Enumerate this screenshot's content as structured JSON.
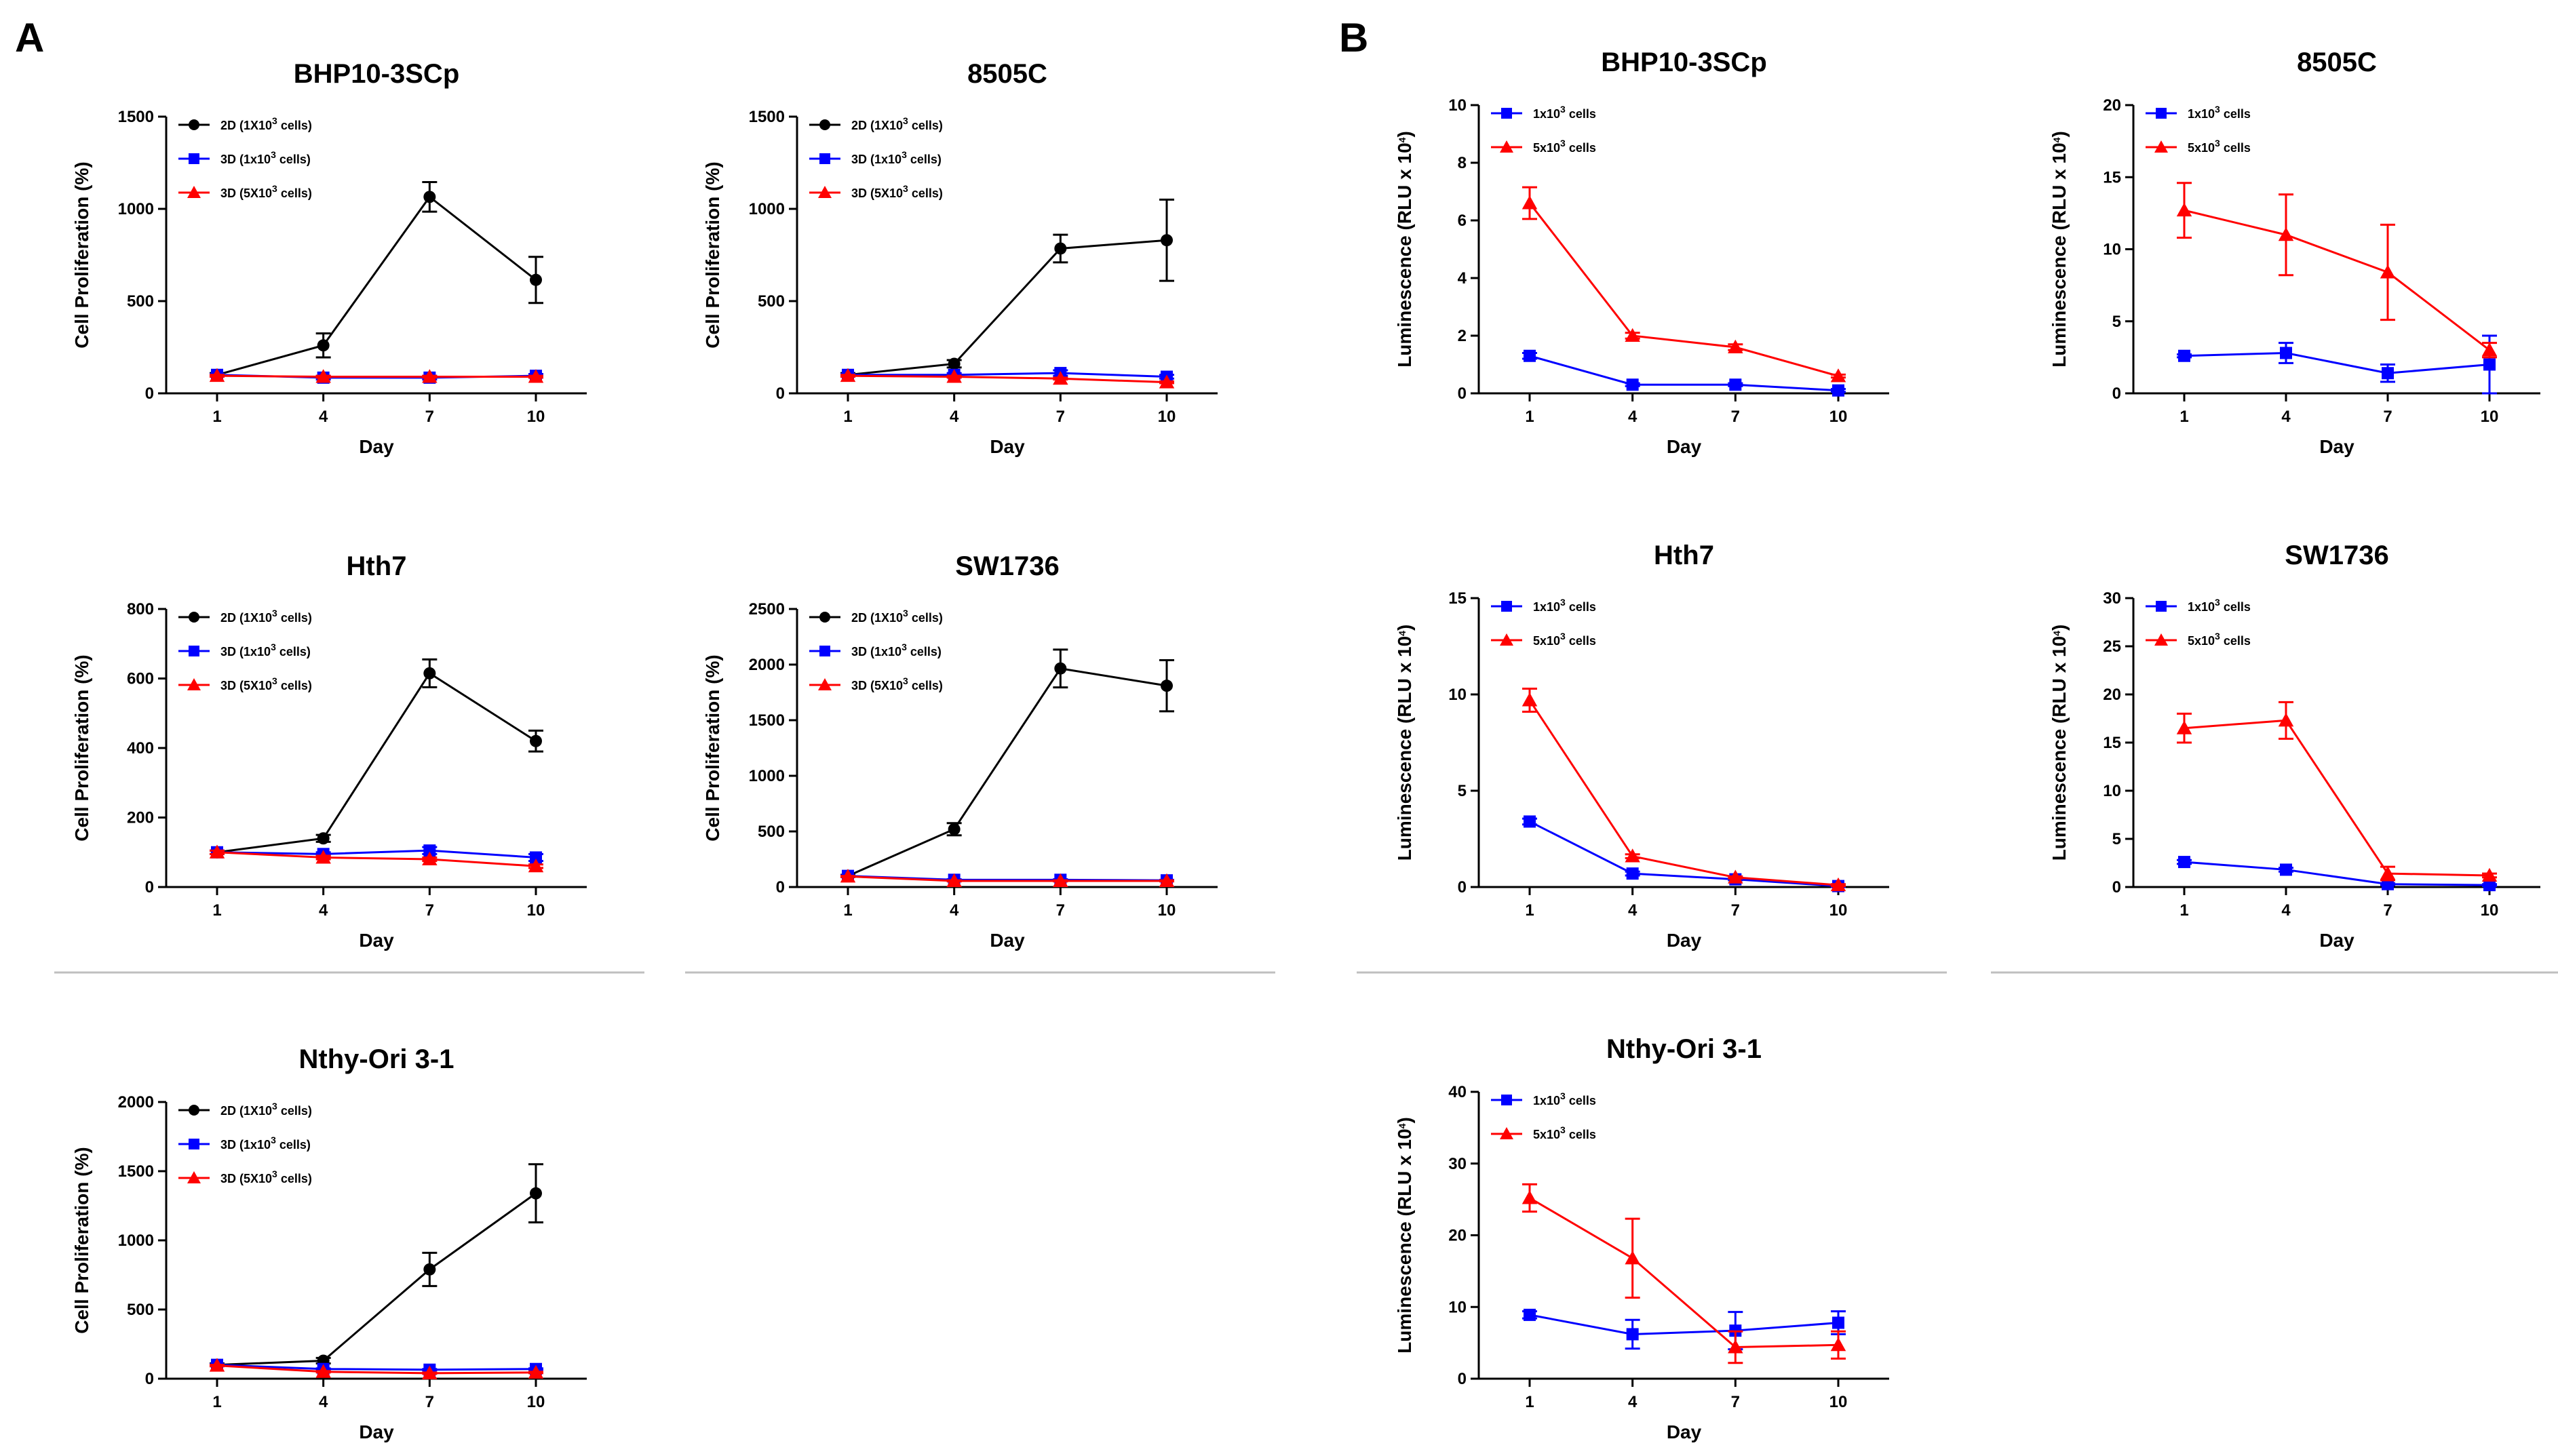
{
  "panels": [
    {
      "letter": "A"
    },
    {
      "letter": "B"
    }
  ],
  "colors": {
    "black": "#000000",
    "blue": "#0000ff",
    "red": "#ff0000",
    "divider": "#bfbfbf"
  },
  "chart_data": [
    {
      "type": "line",
      "panel": "A",
      "title": "BHP10-3SCp",
      "xlabel": "Day",
      "ylabel": "Cell Proliferation (%)",
      "x": [
        1,
        4,
        7,
        10
      ],
      "xticks": [
        "1",
        "4",
        "7",
        "10"
      ],
      "ylim": [
        0,
        1500
      ],
      "yticks": [
        0,
        500,
        1000,
        1500
      ],
      "grid": false,
      "legend": "top-left",
      "series": [
        {
          "name": "2D (1X10",
          "sup": "3",
          "tail": " cells)",
          "color": "#000000",
          "marker": "circle",
          "values": [
            100,
            260,
            1065,
            615
          ],
          "errors": [
            10,
            65,
            80,
            125
          ]
        },
        {
          "name": "3D (1x10",
          "sup": "3",
          "tail": " cells)",
          "color": "#0000ff",
          "marker": "square",
          "values": [
            100,
            85,
            85,
            95
          ],
          "errors": [
            5,
            10,
            10,
            10
          ]
        },
        {
          "name": "3D (5X10",
          "sup": "3",
          "tail": " cells)",
          "color": "#ff0000",
          "marker": "triangle",
          "values": [
            95,
            90,
            90,
            90
          ],
          "errors": [
            5,
            5,
            5,
            5
          ]
        }
      ]
    },
    {
      "type": "line",
      "panel": "A",
      "title": "8505C",
      "xlabel": "Day",
      "ylabel": "Cell Proliferation (%)",
      "x": [
        1,
        4,
        7,
        10
      ],
      "xticks": [
        "1",
        "4",
        "7",
        "10"
      ],
      "ylim": [
        0,
        1500
      ],
      "yticks": [
        0,
        500,
        1000,
        1500
      ],
      "grid": false,
      "legend": "top-left",
      "series": [
        {
          "name": "2D (1X10",
          "sup": "3",
          "tail": " cells)",
          "color": "#000000",
          "marker": "circle",
          "values": [
            100,
            160,
            785,
            830
          ],
          "errors": [
            10,
            20,
            75,
            220
          ]
        },
        {
          "name": "3D (1x10",
          "sup": "3",
          "tail": " cells)",
          "color": "#0000ff",
          "marker": "square",
          "values": [
            100,
            100,
            110,
            90
          ],
          "errors": [
            5,
            10,
            15,
            10
          ]
        },
        {
          "name": "3D (5X10",
          "sup": "3",
          "tail": " cells)",
          "color": "#ff0000",
          "marker": "triangle",
          "values": [
            95,
            90,
            80,
            60
          ],
          "errors": [
            5,
            5,
            5,
            5
          ]
        }
      ]
    },
    {
      "type": "line",
      "panel": "B",
      "title": "BHP10-3SCp",
      "xlabel": "Day",
      "ylabel": "Luminescence (RLU x 10",
      "ylabel_sup": "4",
      "ylabel_tail": ")",
      "x": [
        1,
        4,
        7,
        10
      ],
      "xticks": [
        "1",
        "4",
        "7",
        "10"
      ],
      "ylim": [
        0,
        10
      ],
      "yticks": [
        0,
        2,
        4,
        6,
        8,
        10
      ],
      "grid": false,
      "legend": "top-left",
      "series": [
        {
          "name": "1x10",
          "sup": "3",
          "tail": " cells",
          "color": "#0000ff",
          "marker": "square",
          "values": [
            1.3,
            0.3,
            0.3,
            0.1
          ],
          "errors": [
            0.1,
            0.05,
            0.05,
            0.05
          ]
        },
        {
          "name": "5x10",
          "sup": "3",
          "tail": " cells",
          "color": "#ff0000",
          "marker": "triangle",
          "values": [
            6.6,
            2.0,
            1.6,
            0.6
          ],
          "errors": [
            0.55,
            0.1,
            0.1,
            0.05
          ]
        }
      ]
    },
    {
      "type": "line",
      "panel": "B",
      "title": "8505C",
      "xlabel": "Day",
      "ylabel": "Luminescence (RLU x 10",
      "ylabel_sup": "4",
      "ylabel_tail": ")",
      "x": [
        1,
        4,
        7,
        10
      ],
      "xticks": [
        "1",
        "4",
        "7",
        "10"
      ],
      "ylim": [
        0,
        20
      ],
      "yticks": [
        0,
        5,
        10,
        15,
        20
      ],
      "grid": false,
      "legend": "top-left",
      "series": [
        {
          "name": "1x10",
          "sup": "3",
          "tail": " cells",
          "color": "#0000ff",
          "marker": "square",
          "values": [
            2.6,
            2.8,
            1.4,
            2.0
          ],
          "errors": [
            0.1,
            0.7,
            0.6,
            2.0
          ]
        },
        {
          "name": "5x10",
          "sup": "3",
          "tail": " cells",
          "color": "#ff0000",
          "marker": "triangle",
          "values": [
            12.7,
            11.0,
            8.4,
            3.0
          ],
          "errors": [
            1.9,
            2.8,
            3.3,
            0.5
          ]
        }
      ]
    },
    {
      "type": "line",
      "panel": "A",
      "title": "Hth7",
      "xlabel": "Day",
      "ylabel": "Cell Proliferation (%)",
      "x": [
        1,
        4,
        7,
        10
      ],
      "xticks": [
        "1",
        "4",
        "7",
        "10"
      ],
      "ylim": [
        0,
        800
      ],
      "yticks": [
        0,
        200,
        400,
        600,
        800
      ],
      "grid": false,
      "legend": "top-left",
      "series": [
        {
          "name": "2D (1X10",
          "sup": "3",
          "tail": " cells)",
          "color": "#000000",
          "marker": "circle",
          "values": [
            100,
            140,
            615,
            420
          ],
          "errors": [
            5,
            10,
            40,
            30
          ]
        },
        {
          "name": "3D (1x10",
          "sup": "3",
          "tail": " cells)",
          "color": "#0000ff",
          "marker": "square",
          "values": [
            100,
            95,
            105,
            85
          ],
          "errors": [
            5,
            5,
            10,
            10
          ]
        },
        {
          "name": "3D (5X10",
          "sup": "3",
          "tail": " cells)",
          "color": "#ff0000",
          "marker": "triangle",
          "values": [
            100,
            85,
            80,
            60
          ],
          "errors": [
            5,
            5,
            5,
            5
          ]
        }
      ]
    },
    {
      "type": "line",
      "panel": "A",
      "title": "SW1736",
      "xlabel": "Day",
      "ylabel": "Cell Proliferation (%)",
      "x": [
        1,
        4,
        7,
        10
      ],
      "xticks": [
        "1",
        "4",
        "7",
        "10"
      ],
      "ylim": [
        0,
        2500
      ],
      "yticks": [
        0,
        500,
        1000,
        1500,
        2000,
        2500
      ],
      "grid": false,
      "legend": "top-left",
      "series": [
        {
          "name": "2D (1X10",
          "sup": "3",
          "tail": " cells)",
          "color": "#000000",
          "marker": "circle",
          "values": [
            100,
            520,
            1965,
            1810
          ],
          "errors": [
            10,
            55,
            170,
            230
          ]
        },
        {
          "name": "3D (1x10",
          "sup": "3",
          "tail": " cells)",
          "color": "#0000ff",
          "marker": "square",
          "values": [
            100,
            65,
            65,
            60
          ],
          "errors": [
            5,
            5,
            5,
            5
          ]
        },
        {
          "name": "3D (5X10",
          "sup": "3",
          "tail": " cells)",
          "color": "#ff0000",
          "marker": "triangle",
          "values": [
            95,
            55,
            55,
            55
          ],
          "errors": [
            5,
            5,
            5,
            5
          ]
        }
      ]
    },
    {
      "type": "line",
      "panel": "B",
      "title": "Hth7",
      "xlabel": "Day",
      "ylabel": "Luminescence (RLU x 10",
      "ylabel_sup": "4",
      "ylabel_tail": ")",
      "x": [
        1,
        4,
        7,
        10
      ],
      "xticks": [
        "1",
        "4",
        "7",
        "10"
      ],
      "ylim": [
        0,
        15
      ],
      "yticks": [
        0,
        5,
        10,
        15
      ],
      "grid": false,
      "legend": "top-left",
      "series": [
        {
          "name": "1x10",
          "sup": "3",
          "tail": " cells",
          "color": "#0000ff",
          "marker": "square",
          "values": [
            3.4,
            0.7,
            0.4,
            0.05
          ],
          "errors": [
            0.15,
            0.1,
            0.05,
            0.05
          ]
        },
        {
          "name": "5x10",
          "sup": "3",
          "tail": " cells",
          "color": "#ff0000",
          "marker": "triangle",
          "values": [
            9.7,
            1.6,
            0.5,
            0.1
          ],
          "errors": [
            0.6,
            0.1,
            0.05,
            0.05
          ]
        }
      ]
    },
    {
      "type": "line",
      "panel": "B",
      "title": "SW1736",
      "xlabel": "Day",
      "ylabel": "Luminescence (RLU x 10",
      "ylabel_sup": "4",
      "ylabel_tail": ")",
      "x": [
        1,
        4,
        7,
        10
      ],
      "xticks": [
        "1",
        "4",
        "7",
        "10"
      ],
      "ylim": [
        0,
        30
      ],
      "yticks": [
        0,
        5,
        10,
        15,
        20,
        25,
        30
      ],
      "grid": false,
      "legend": "top-left",
      "series": [
        {
          "name": "1x10",
          "sup": "3",
          "tail": " cells",
          "color": "#0000ff",
          "marker": "square",
          "values": [
            2.6,
            1.8,
            0.3,
            0.2
          ],
          "errors": [
            0.2,
            0.2,
            0.1,
            0.1
          ]
        },
        {
          "name": "5x10",
          "sup": "3",
          "tail": " cells",
          "color": "#ff0000",
          "marker": "triangle",
          "values": [
            16.5,
            17.3,
            1.4,
            1.2
          ],
          "errors": [
            1.5,
            1.9,
            0.7,
            0.2
          ]
        }
      ]
    },
    {
      "type": "line",
      "panel": "A",
      "title": "Nthy-Ori 3-1",
      "xlabel": "Day",
      "ylabel": "Cell Proliferation (%)",
      "x": [
        1,
        4,
        7,
        10
      ],
      "xticks": [
        "1",
        "4",
        "7",
        "10"
      ],
      "ylim": [
        0,
        2000
      ],
      "yticks": [
        0,
        500,
        1000,
        1500,
        2000
      ],
      "grid": false,
      "legend": "top-left",
      "series": [
        {
          "name": "2D (1X10",
          "sup": "3",
          "tail": " cells)",
          "color": "#000000",
          "marker": "circle",
          "values": [
            100,
            130,
            790,
            1340
          ],
          "errors": [
            10,
            20,
            120,
            210
          ]
        },
        {
          "name": "3D (1x10",
          "sup": "3",
          "tail": " cells)",
          "color": "#0000ff",
          "marker": "square",
          "values": [
            100,
            70,
            65,
            70
          ],
          "errors": [
            5,
            5,
            5,
            5
          ]
        },
        {
          "name": "3D (5X10",
          "sup": "3",
          "tail": " cells)",
          "color": "#ff0000",
          "marker": "triangle",
          "values": [
            95,
            50,
            40,
            45
          ],
          "errors": [
            5,
            5,
            5,
            5
          ]
        }
      ]
    },
    {
      "type": "line",
      "panel": "B",
      "title": "Nthy-Ori 3-1",
      "xlabel": "Day",
      "ylabel": "Luminescence (RLU x 10",
      "ylabel_sup": "4",
      "ylabel_tail": ")",
      "x": [
        1,
        4,
        7,
        10
      ],
      "xticks": [
        "1",
        "4",
        "7",
        "10"
      ],
      "ylim": [
        0,
        40
      ],
      "yticks": [
        0,
        10,
        20,
        30,
        40
      ],
      "grid": false,
      "legend": "top-left",
      "series": [
        {
          "name": "1x10",
          "sup": "3",
          "tail": " cells",
          "color": "#0000ff",
          "marker": "square",
          "values": [
            8.9,
            6.2,
            6.7,
            7.8
          ],
          "errors": [
            0.5,
            2.0,
            2.6,
            1.6
          ]
        },
        {
          "name": "5x10",
          "sup": "3",
          "tail": " cells",
          "color": "#ff0000",
          "marker": "triangle",
          "values": [
            25.2,
            16.8,
            4.4,
            4.7
          ],
          "errors": [
            1.9,
            5.5,
            2.2,
            1.9
          ]
        }
      ]
    }
  ]
}
